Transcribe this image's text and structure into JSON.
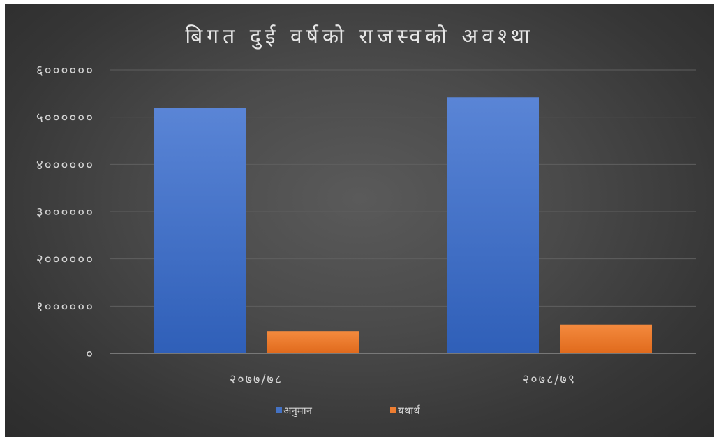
{
  "chart_data": {
    "type": "bar",
    "title": "बिगत दुई वर्षको राजस्वको अवश्था",
    "xlabel": "",
    "ylabel": "",
    "categories": [
      "२०७७/७८",
      "२०७८/७९"
    ],
    "series": [
      {
        "name": "अनुमान",
        "values": [
          5200000,
          5420000
        ],
        "color": "#4472c4"
      },
      {
        "name": "यथार्थ",
        "values": [
          470000,
          610000
        ],
        "color": "#ed7d31"
      }
    ],
    "ylim": [
      0,
      6000000
    ],
    "yticks": [
      0,
      1000000,
      2000000,
      3000000,
      4000000,
      5000000,
      6000000
    ],
    "ytick_labels": [
      "०",
      "१००००००",
      "२००००००",
      "३००००००",
      "४००००००",
      "५००००००",
      "६००००००"
    ],
    "grid": true,
    "legend_position": "bottom",
    "colors": {
      "background": "#404040",
      "gridline": "#5f5f5f",
      "axis": "#8a8a8a",
      "text": "#d4d4d4"
    }
  }
}
